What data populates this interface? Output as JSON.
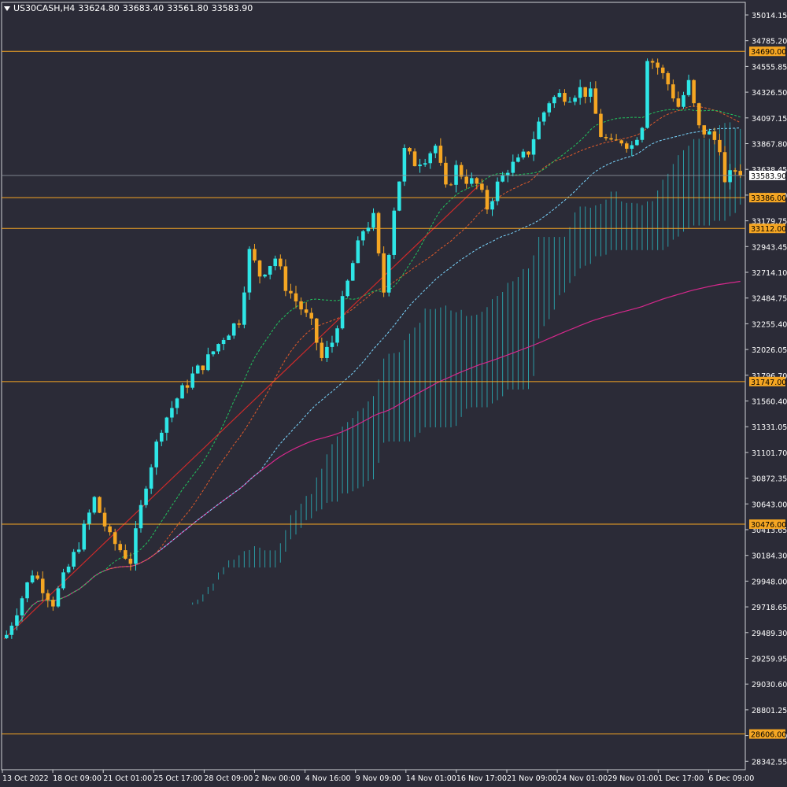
{
  "header": {
    "symbol": "US30CASH,H4",
    "open": "33624.80",
    "high": "33683.40",
    "low": "33561.80",
    "close": "33583.90"
  },
  "colors": {
    "background": "#2b2b37",
    "bull": "#2ee6e6",
    "bear": "#f5a623",
    "level_line": "#f5a623",
    "sma_green": "#22c55e",
    "sma_orange": "#e05a2a",
    "sma_cyan": "#7ad7ff",
    "sma_magenta": "#d6288c",
    "trendline": "#cc2a2a",
    "cloud_bull": "#2aa8b0",
    "cloud_bear": "#8b1e1e"
  },
  "chart_data": {
    "type": "candlestick",
    "y_axis": {
      "min": 28342.55,
      "max": 35014.15,
      "tick_labels": [
        "35014.15",
        "34785.20",
        "34555.85",
        "34326.50",
        "34097.15",
        "33867.80",
        "33638.45",
        "33409.10",
        "33179.75",
        "32943.45",
        "32714.10",
        "32484.75",
        "32255.40",
        "32026.05",
        "31796.70",
        "31560.40",
        "31331.05",
        "31101.70",
        "30872.35",
        "30643.00",
        "30413.65",
        "30184.30",
        "29948.00",
        "29718.65",
        "29489.30",
        "29259.95",
        "29030.60",
        "28801.25",
        "28572.00",
        "28342.55"
      ]
    },
    "x_axis": {
      "tick_labels": [
        "13 Oct 2022",
        "18 Oct 09:00",
        "21 Oct 01:00",
        "25 Oct 17:00",
        "28 Oct 09:00",
        "2 Nov 00:00",
        "4 Nov 16:00",
        "9 Nov 09:00",
        "14 Nov 01:00",
        "16 Nov 17:00",
        "21 Nov 09:00",
        "24 Nov 01:00",
        "29 Nov 01:00",
        "1 Dec 17:00",
        "6 Dec 09:00"
      ]
    },
    "levels": [
      {
        "price": 34690.0,
        "label": "34690.00"
      },
      {
        "price": 33386.0,
        "label": "33386.00"
      },
      {
        "price": 33112.0,
        "label": "33112.00"
      },
      {
        "price": 31747.0,
        "label": "31747.00"
      },
      {
        "price": 30476.0,
        "label": "30476.00"
      },
      {
        "price": 28606.0,
        "label": "28606.00"
      }
    ],
    "current_price": {
      "price": 33583.9,
      "label": "33583.90"
    },
    "close_path": [
      [
        0,
        29490
      ],
      [
        5,
        30050
      ],
      [
        9,
        29780
      ],
      [
        14,
        30300
      ],
      [
        17,
        30700
      ],
      [
        20,
        30350
      ],
      [
        24,
        30150
      ],
      [
        27,
        30850
      ],
      [
        30,
        31350
      ],
      [
        33,
        31600
      ],
      [
        36,
        31800
      ],
      [
        39,
        31950
      ],
      [
        42,
        32150
      ],
      [
        45,
        32300
      ],
      [
        47,
        32900
      ],
      [
        49,
        32700
      ],
      [
        52,
        32850
      ],
      [
        54,
        32600
      ],
      [
        57,
        32400
      ],
      [
        59,
        32250
      ],
      [
        61,
        31950
      ],
      [
        63,
        32100
      ],
      [
        65,
        32450
      ],
      [
        67,
        32800
      ],
      [
        69,
        33100
      ],
      [
        71,
        33200
      ],
      [
        72,
        32850
      ],
      [
        73,
        32550
      ],
      [
        75,
        33300
      ],
      [
        77,
        33800
      ],
      [
        79,
        33700
      ],
      [
        81,
        33750
      ],
      [
        83,
        33850
      ],
      [
        85,
        33450
      ],
      [
        87,
        33650
      ],
      [
        89,
        33550
      ],
      [
        91,
        33500
      ],
      [
        93,
        33300
      ],
      [
        95,
        33500
      ],
      [
        97,
        33650
      ],
      [
        99,
        33700
      ],
      [
        101,
        33800
      ],
      [
        103,
        34050
      ],
      [
        105,
        34250
      ],
      [
        107,
        34300
      ],
      [
        109,
        34300
      ],
      [
        111,
        34350
      ],
      [
        113,
        34300
      ],
      [
        115,
        33950
      ],
      [
        117,
        33850
      ],
      [
        119,
        33900
      ],
      [
        121,
        33850
      ],
      [
        123,
        34050
      ],
      [
        124,
        34650
      ],
      [
        126,
        34550
      ],
      [
        128,
        34400
      ],
      [
        130,
        34200
      ],
      [
        132,
        34400
      ],
      [
        134,
        34000
      ],
      [
        136,
        33950
      ],
      [
        138,
        33850
      ],
      [
        139,
        33500
      ],
      [
        141,
        33650
      ],
      [
        142,
        33584
      ]
    ]
  }
}
